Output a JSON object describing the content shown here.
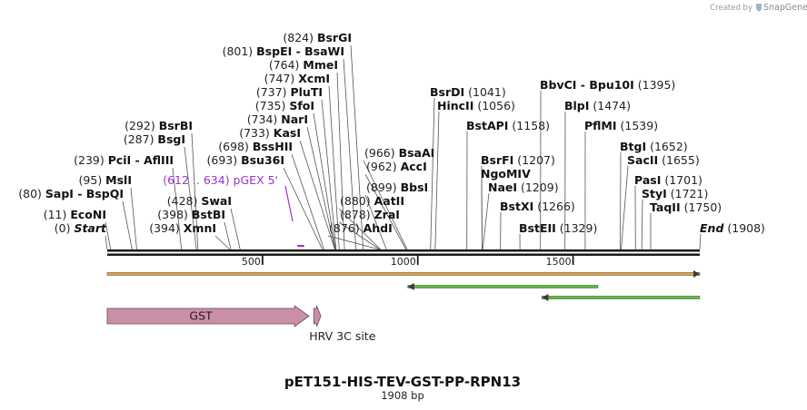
{
  "header": {
    "credit_prefix": "Created by",
    "credit_brand": "SnapGene"
  },
  "map": {
    "title": "pET151-HIS-TEV-GST-PP-RPN13",
    "length_text": "1908 bp",
    "length_bp": 1908,
    "ticks": [
      {
        "pos": 500,
        "label": "500"
      },
      {
        "pos": 1000,
        "label": "1000"
      },
      {
        "pos": 1500,
        "label": "1500"
      }
    ],
    "primer": {
      "range": "(612 .. 634)",
      "name": "pGEX 5'",
      "start": 612,
      "end": 634,
      "color": "#9933cc"
    }
  },
  "sites": [
    {
      "name": "Start",
      "pos": 0,
      "label": "(0)",
      "kind": "end"
    },
    {
      "name": "EcoNI",
      "pos": 11,
      "label": "(11)"
    },
    {
      "name": "SapI",
      "name2": "BspQI",
      "pos": 80,
      "label": "(80)"
    },
    {
      "name": "MslI",
      "pos": 95,
      "label": "(95)"
    },
    {
      "name": "PciI",
      "name2": "AflIII",
      "pos": 239,
      "label": "(239)"
    },
    {
      "name": "BsgI",
      "pos": 287,
      "label": "(287)"
    },
    {
      "name": "BsrBI",
      "pos": 292,
      "label": "(292)"
    },
    {
      "name": "XmnI",
      "pos": 394,
      "label": "(394)"
    },
    {
      "name": "BstBI",
      "pos": 398,
      "label": "(398)"
    },
    {
      "name": "SwaI",
      "pos": 428,
      "label": "(428)"
    },
    {
      "name": "Bsu36I",
      "pos": 693,
      "label": "(693)"
    },
    {
      "name": "BssHII",
      "pos": 698,
      "label": "(698)"
    },
    {
      "name": "KasI",
      "pos": 733,
      "label": "(733)"
    },
    {
      "name": "NarI",
      "pos": 734,
      "label": "(734)"
    },
    {
      "name": "SfoI",
      "pos": 735,
      "label": "(735)"
    },
    {
      "name": "PluTI",
      "pos": 737,
      "label": "(737)"
    },
    {
      "name": "XcmI",
      "pos": 747,
      "label": "(747)"
    },
    {
      "name": "MmeI",
      "pos": 764,
      "label": "(764)"
    },
    {
      "name": "BspEI",
      "name2": "BsaWI",
      "pos": 801,
      "label": "(801)"
    },
    {
      "name": "BsrGI",
      "pos": 824,
      "label": "(824)"
    },
    {
      "name": "AhdI",
      "pos": 876,
      "label": "(876)"
    },
    {
      "name": "ZraI",
      "pos": 878,
      "label": "(878)"
    },
    {
      "name": "AatII",
      "pos": 880,
      "label": "(880)"
    },
    {
      "name": "BbsI",
      "pos": 899,
      "label": "(899)"
    },
    {
      "name": "AccI",
      "pos": 962,
      "label": "(962)"
    },
    {
      "name": "BsaAI",
      "pos": 966,
      "label": "(966)"
    },
    {
      "name": "BsrDI",
      "pos": 1041,
      "label": "(1041)"
    },
    {
      "name": "HincII",
      "pos": 1056,
      "label": "(1056)"
    },
    {
      "name": "BstAPI",
      "pos": 1158,
      "label": "(1158)"
    },
    {
      "name": "BsrFI",
      "pos": 1207,
      "label": "(1207)"
    },
    {
      "name": "NgoMIV",
      "pos": 1207,
      "label": ""
    },
    {
      "name": "NaeI",
      "pos": 1209,
      "label": "(1209)"
    },
    {
      "name": "BstXI",
      "pos": 1266,
      "label": "(1266)"
    },
    {
      "name": "BstEII",
      "pos": 1329,
      "label": "(1329)"
    },
    {
      "name": "BbvCI",
      "name2": "Bpu10I",
      "pos": 1395,
      "label": "(1395)"
    },
    {
      "name": "BlpI",
      "pos": 1474,
      "label": "(1474)"
    },
    {
      "name": "PflMI",
      "pos": 1539,
      "label": "(1539)"
    },
    {
      "name": "BtgI",
      "pos": 1652,
      "label": "(1652)"
    },
    {
      "name": "SacII",
      "pos": 1655,
      "label": "(1655)"
    },
    {
      "name": "PasI",
      "pos": 1701,
      "label": "(1701)"
    },
    {
      "name": "StyI",
      "pos": 1721,
      "label": "(1721)"
    },
    {
      "name": "TaqII",
      "pos": 1750,
      "label": "(1750)"
    },
    {
      "name": "End",
      "pos": 1908,
      "label": "(1908)",
      "kind": "end"
    }
  ],
  "orfs": [
    {
      "start": 0,
      "end": 1908,
      "direction": "forward",
      "color": "#e8a33a"
    },
    {
      "start": 968,
      "end": 1580,
      "direction": "reverse",
      "color": "#5cbf3a"
    },
    {
      "start": 1400,
      "end": 1908,
      "direction": "reverse",
      "color": "#5cbf3a"
    }
  ],
  "features": [
    {
      "name": "GST",
      "start": 0,
      "end": 650,
      "label_pos": "inside",
      "color": "#c98ea8"
    },
    {
      "name": "HRV 3C site",
      "start": 665,
      "end": 688,
      "label_pos": "below",
      "color": "#c98ea8"
    }
  ]
}
